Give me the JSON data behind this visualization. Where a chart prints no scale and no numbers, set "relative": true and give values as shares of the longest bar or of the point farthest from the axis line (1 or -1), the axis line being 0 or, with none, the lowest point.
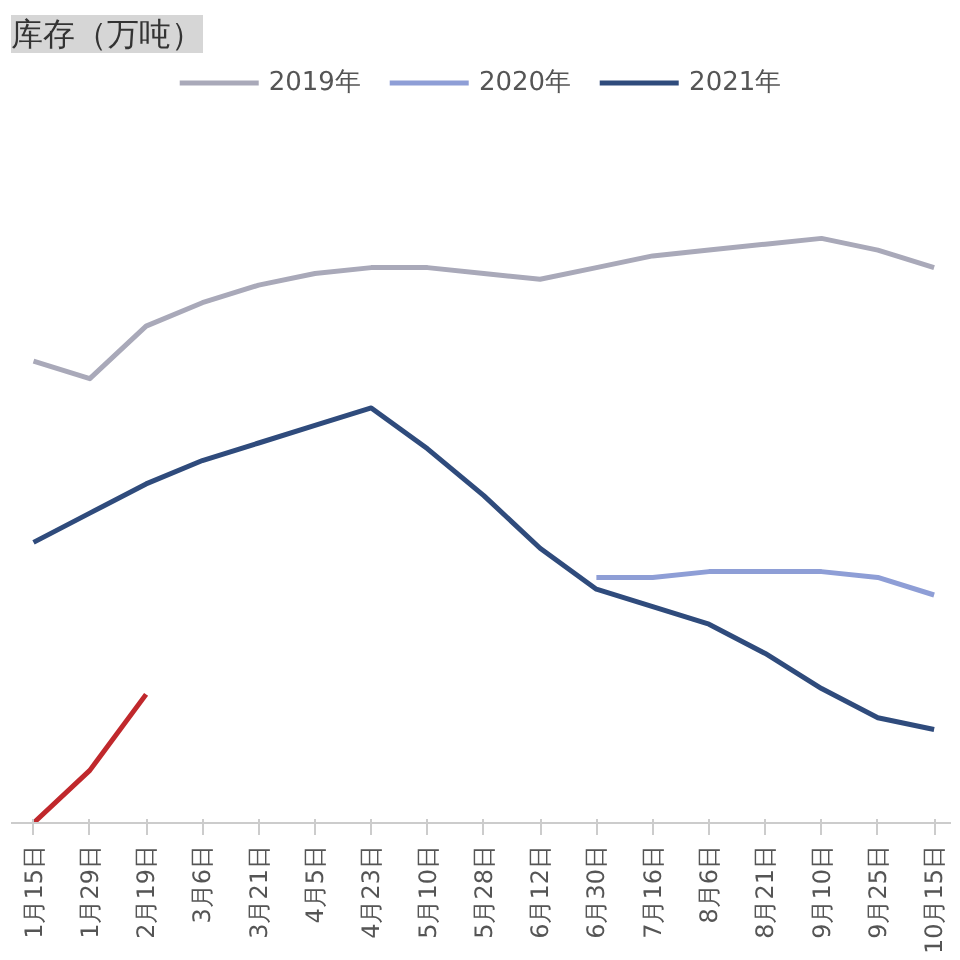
{
  "chart_data": {
    "type": "line",
    "title": "库存（万吨）",
    "relative": true,
    "legend": "top",
    "grid": false,
    "categories": [
      "1月15日",
      "1月29日",
      "2月19日",
      "3月6日",
      "3月21日",
      "4月5日",
      "4月23日",
      "5月10日",
      "5月28日",
      "6月12日",
      "6月30日",
      "7月16日",
      "8月6日",
      "8月21日",
      "9月10日",
      "9月25日",
      "10月15日"
    ],
    "series": [
      {
        "name": "2019年",
        "color": "#a9a9b9",
        "values": [
          0.79,
          0.76,
          0.85,
          0.89,
          0.92,
          0.94,
          0.95,
          0.95,
          0.94,
          0.93,
          0.95,
          0.97,
          0.98,
          0.99,
          1,
          0.98,
          0.95
        ]
      },
      {
        "name": "2020年",
        "color": "#8e9ed6",
        "values": [
          null,
          null,
          null,
          null,
          null,
          null,
          null,
          null,
          null,
          null,
          0.42,
          0.42,
          0.43,
          0.43,
          0.43,
          0.42,
          0.39
        ]
      },
      {
        "name": "2021年",
        "color": "#2f4b7c",
        "values": [
          0.48,
          0.53,
          0.58,
          0.62,
          0.65,
          0.68,
          0.71,
          0.64,
          0.56,
          0.47,
          0.4,
          0.37,
          0.34,
          0.29,
          0.23,
          0.18,
          0.16
        ]
      },
      {
        "color": "#c0282c",
        "values": [
          0,
          0.09,
          0.22,
          null,
          null,
          null,
          null,
          null,
          null,
          null,
          null,
          null,
          null,
          null,
          null,
          null,
          null
        ]
      }
    ]
  }
}
